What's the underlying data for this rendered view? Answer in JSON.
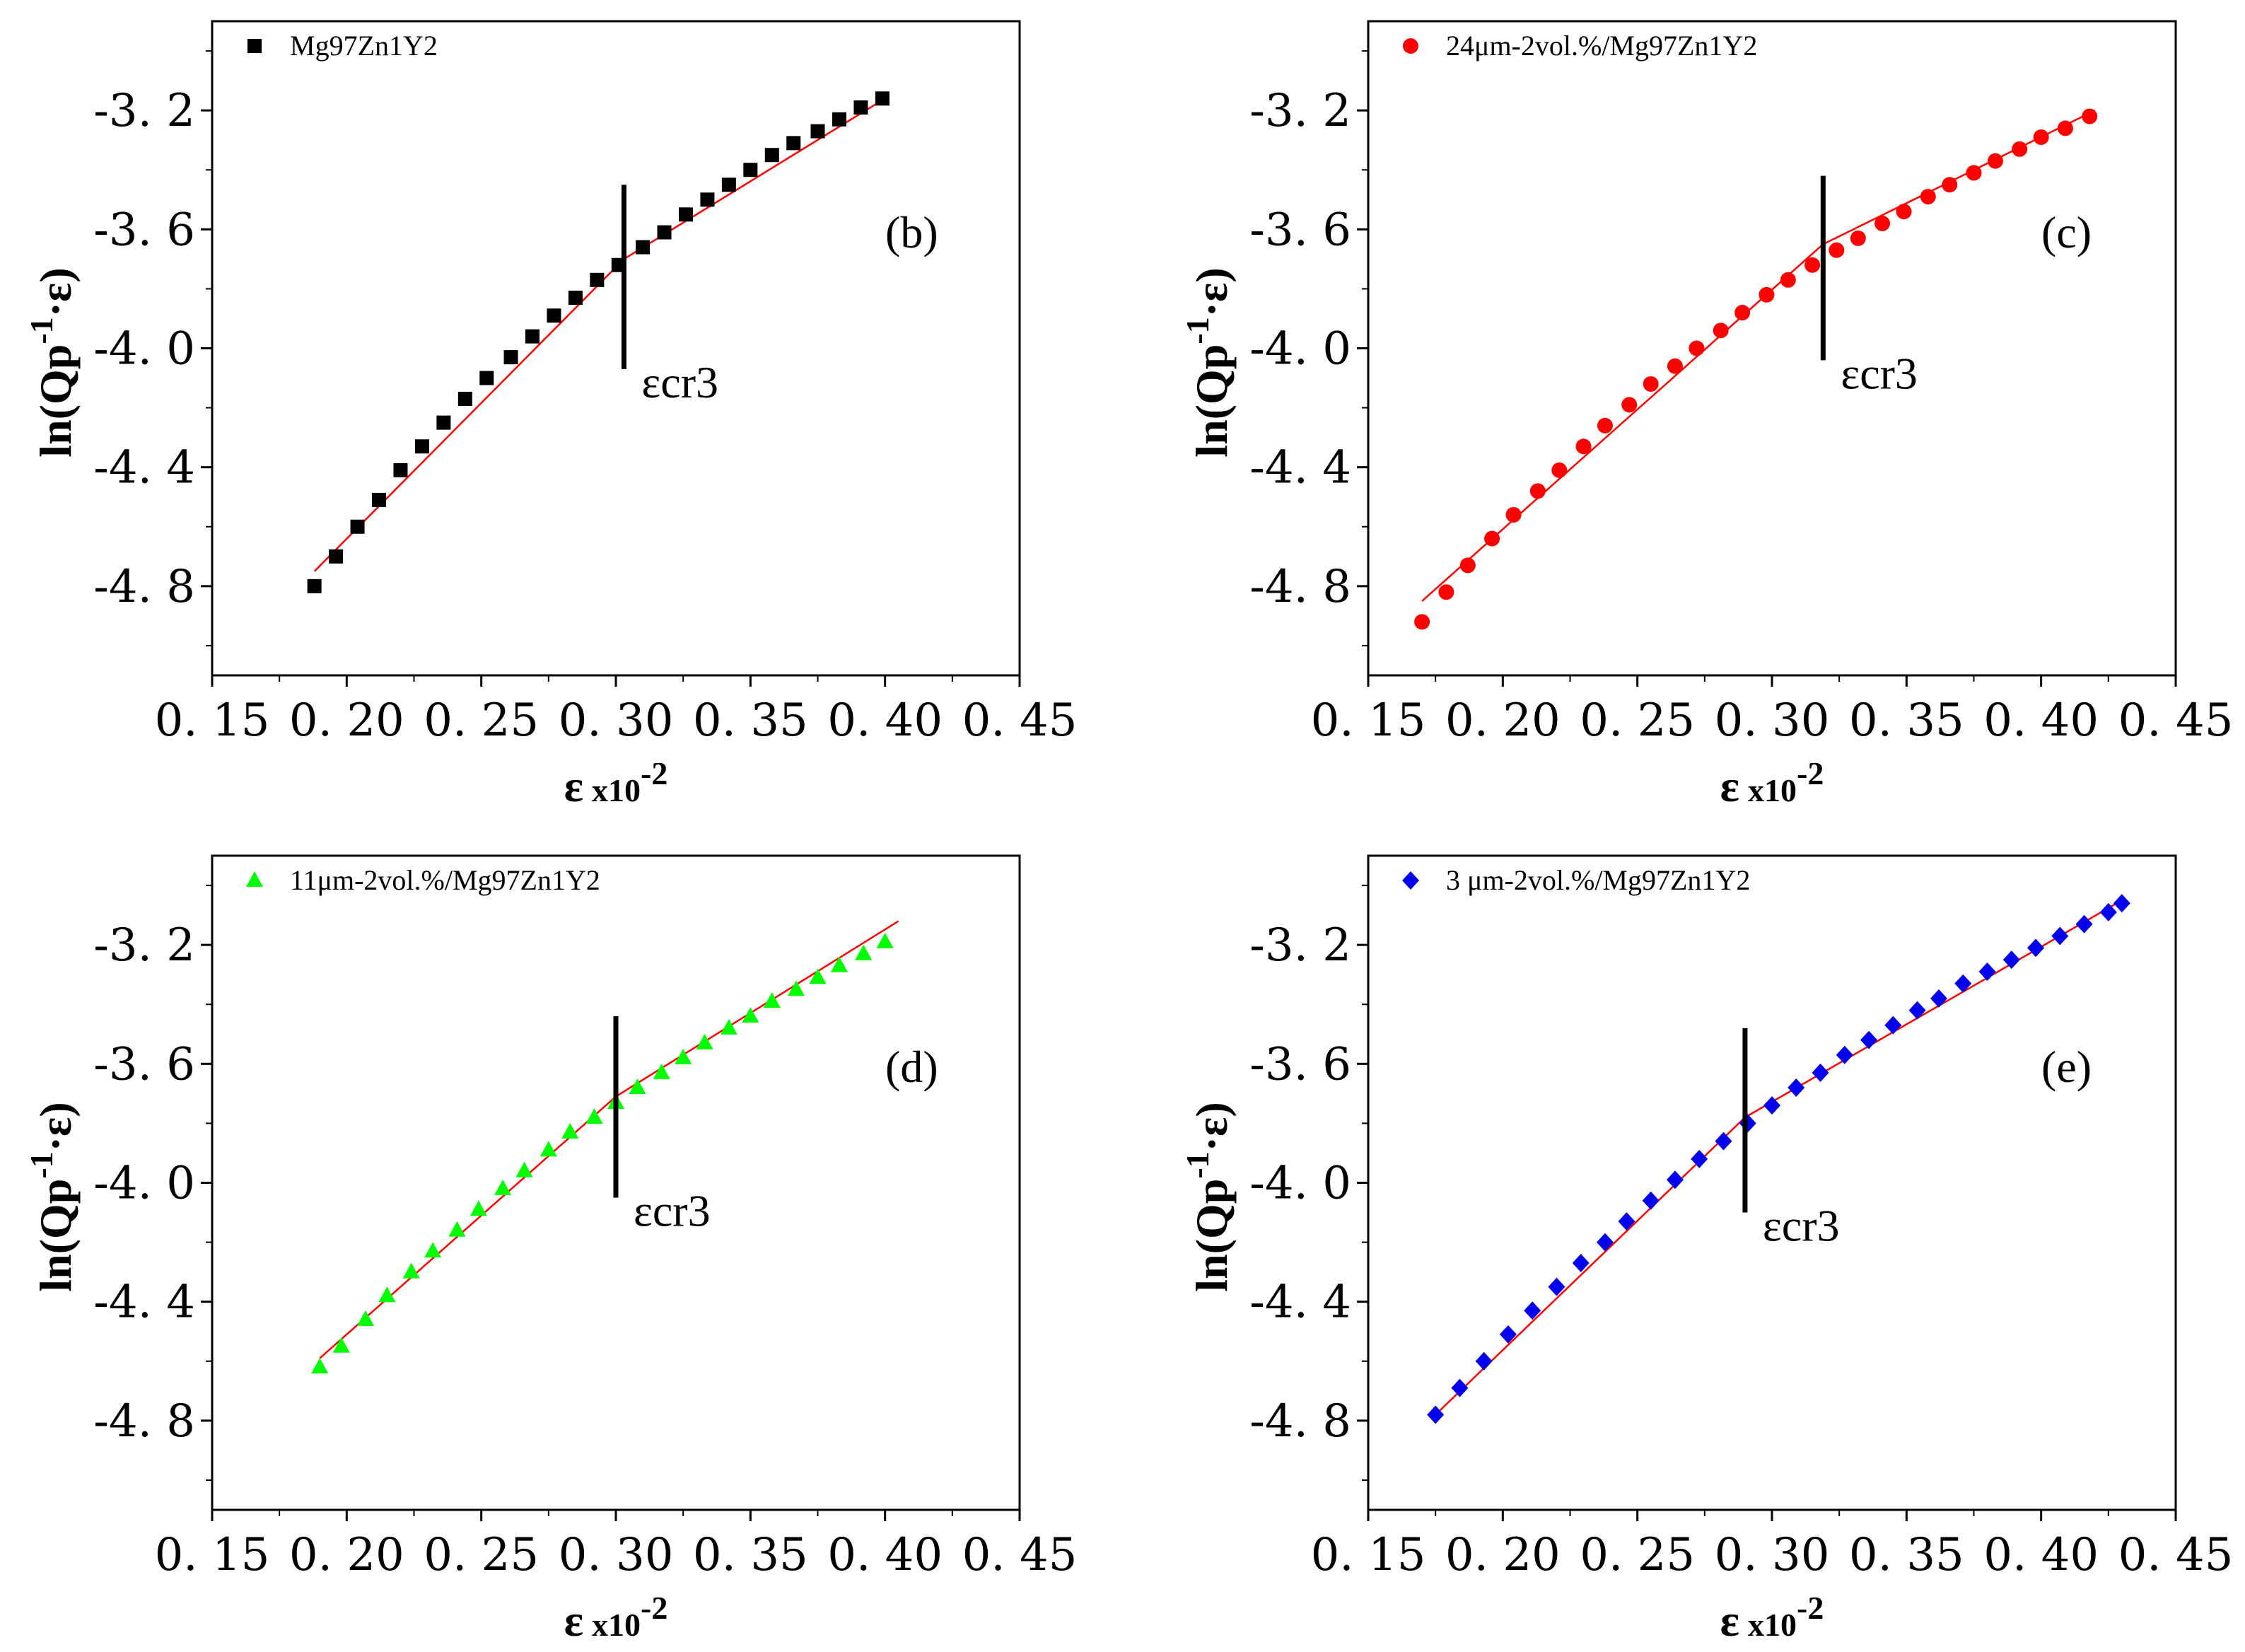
{
  "chart_data": [
    {
      "type": "scatter",
      "panel_label": "(b)",
      "legend": "Mg97Zn1Y2",
      "marker": "square",
      "color": "#000000",
      "fit_color": "#ff0000",
      "xlabel": "ε",
      "xlabel_suffix": "x10",
      "xlabel_exp": "-2",
      "ylabel": "ln(Qp",
      "ylabel_sup": "-1",
      "ylabel_tail": "·ε)",
      "xlim": [
        0.15,
        0.45
      ],
      "ylim": [
        -5.1,
        -2.9
      ],
      "x_ticks": [
        "0. 15",
        "0. 20",
        "0. 25",
        "0. 30",
        "0. 35",
        "0. 40",
        "0. 45"
      ],
      "y_ticks": [
        "-3. 2",
        "-3. 6",
        "-4. 0",
        "-4. 4",
        "-4. 8"
      ],
      "annotation": {
        "text": "εcr3",
        "x": 0.303,
        "y_range": [
          -4.07,
          -3.45
        ]
      },
      "fit": [
        {
          "x": [
            0.188,
            0.303
          ],
          "y": [
            -4.75,
            -3.7
          ]
        },
        {
          "x": [
            0.303,
            0.4
          ],
          "y": [
            -3.7,
            -3.16
          ]
        }
      ],
      "series": [
        {
          "name": "Mg97Zn1Y2",
          "x": [
            0.188,
            0.196,
            0.204,
            0.212,
            0.22,
            0.228,
            0.236,
            0.244,
            0.252,
            0.261,
            0.269,
            0.277,
            0.285,
            0.293,
            0.301,
            0.31,
            0.318,
            0.326,
            0.334,
            0.342,
            0.35,
            0.358,
            0.366,
            0.375,
            0.383,
            0.391,
            0.399
          ],
          "y": [
            -4.8,
            -4.7,
            -4.6,
            -4.51,
            -4.41,
            -4.33,
            -4.25,
            -4.17,
            -4.1,
            -4.03,
            -3.96,
            -3.89,
            -3.83,
            -3.77,
            -3.72,
            -3.66,
            -3.61,
            -3.55,
            -3.5,
            -3.45,
            -3.4,
            -3.35,
            -3.31,
            -3.27,
            -3.23,
            -3.19,
            -3.16
          ]
        }
      ]
    },
    {
      "type": "scatter",
      "panel_label": "(c)",
      "legend": "24μm-2vol.%/Mg97Zn1Y2",
      "marker": "circle",
      "color": "#ff0000",
      "fit_color": "#ff0000",
      "xlabel": "ε",
      "xlabel_suffix": "x10",
      "xlabel_exp": "-2",
      "ylabel": "ln(Qp",
      "ylabel_sup": "-1",
      "ylabel_tail": "·ε)",
      "xlim": [
        0.15,
        0.45
      ],
      "ylim": [
        -5.1,
        -2.9
      ],
      "x_ticks": [
        "0. 15",
        "0. 20",
        "0. 25",
        "0. 30",
        "0. 35",
        "0. 40",
        "0. 45"
      ],
      "y_ticks": [
        "-3. 2",
        "-3. 6",
        "-4. 0",
        "-4. 4",
        "-4. 8"
      ],
      "annotation": {
        "text": "εcr3",
        "x": 0.319,
        "y_range": [
          -4.04,
          -3.42
        ]
      },
      "fit": [
        {
          "x": [
            0.17,
            0.319
          ],
          "y": [
            -4.85,
            -3.65
          ]
        },
        {
          "x": [
            0.319,
            0.42
          ],
          "y": [
            -3.65,
            -3.2
          ]
        }
      ],
      "series": [
        {
          "name": "24μm-2vol.%/Mg97Zn1Y2",
          "x": [
            0.17,
            0.179,
            0.187,
            0.196,
            0.204,
            0.213,
            0.221,
            0.23,
            0.238,
            0.247,
            0.255,
            0.264,
            0.272,
            0.281,
            0.289,
            0.298,
            0.306,
            0.315,
            0.324,
            0.332,
            0.341,
            0.349,
            0.358,
            0.366,
            0.375,
            0.383,
            0.392,
            0.4,
            0.409,
            0.418
          ],
          "y": [
            -4.92,
            -4.82,
            -4.73,
            -4.64,
            -4.56,
            -4.48,
            -4.41,
            -4.33,
            -4.26,
            -4.19,
            -4.12,
            -4.06,
            -4.0,
            -3.94,
            -3.88,
            -3.82,
            -3.77,
            -3.72,
            -3.67,
            -3.63,
            -3.58,
            -3.54,
            -3.49,
            -3.45,
            -3.41,
            -3.37,
            -3.33,
            -3.29,
            -3.26,
            -3.22
          ]
        }
      ]
    },
    {
      "type": "scatter",
      "panel_label": "(d)",
      "legend": "11μm-2vol.%/Mg97Zn1Y2",
      "marker": "triangle",
      "color": "#00ff00",
      "fit_color": "#ff0000",
      "xlabel": "ε",
      "xlabel_suffix": "x10",
      "xlabel_exp": "-2",
      "ylabel": "ln(Qp",
      "ylabel_sup": "-1",
      "ylabel_tail": "·ε)",
      "xlim": [
        0.15,
        0.45
      ],
      "ylim": [
        -5.1,
        -2.9
      ],
      "x_ticks": [
        "0. 15",
        "0. 20",
        "0. 25",
        "0. 30",
        "0. 35",
        "0. 40",
        "0. 45"
      ],
      "y_ticks": [
        "-3. 2",
        "-3. 6",
        "-4. 0",
        "-4. 4",
        "-4. 8"
      ],
      "annotation": {
        "text": "εcr3",
        "x": 0.3,
        "y_range": [
          -4.05,
          -3.44
        ]
      },
      "fit": [
        {
          "x": [
            0.19,
            0.3
          ],
          "y": [
            -4.59,
            -3.71
          ]
        },
        {
          "x": [
            0.3,
            0.405
          ],
          "y": [
            -3.71,
            -3.12
          ]
        }
      ],
      "series": [
        {
          "name": "11μm-2vol.%/Mg97Zn1Y2",
          "x": [
            0.19,
            0.198,
            0.207,
            0.215,
            0.224,
            0.232,
            0.241,
            0.249,
            0.258,
            0.266,
            0.275,
            0.283,
            0.292,
            0.3,
            0.308,
            0.317,
            0.325,
            0.333,
            0.342,
            0.35,
            0.358,
            0.367,
            0.375,
            0.383,
            0.392,
            0.4
          ],
          "y": [
            -4.62,
            -4.55,
            -4.46,
            -4.38,
            -4.3,
            -4.23,
            -4.16,
            -4.09,
            -4.02,
            -3.96,
            -3.89,
            -3.83,
            -3.78,
            -3.73,
            -3.68,
            -3.63,
            -3.58,
            -3.53,
            -3.48,
            -3.44,
            -3.39,
            -3.35,
            -3.31,
            -3.27,
            -3.23,
            -3.19
          ]
        }
      ]
    },
    {
      "type": "scatter",
      "panel_label": "(e)",
      "legend": "3  μm-2vol.%/Mg97Zn1Y2",
      "marker": "diamond",
      "color": "#0000ee",
      "fit_color": "#ff0000",
      "xlabel": "ε",
      "xlabel_suffix": "x10",
      "xlabel_exp": "-2",
      "ylabel": "ln(Qp",
      "ylabel_sup": "-1",
      "ylabel_tail": "·ε)",
      "xlim": [
        0.15,
        0.45
      ],
      "ylim": [
        -5.1,
        -2.9
      ],
      "x_ticks": [
        "0. 15",
        "0. 20",
        "0. 25",
        "0. 30",
        "0. 35",
        "0. 40",
        "0. 45"
      ],
      "y_ticks": [
        "-3. 2",
        "-3. 6",
        "-4. 0",
        "-4. 4",
        "-4. 8"
      ],
      "annotation": {
        "text": "εcr3",
        "x": 0.29,
        "y_range": [
          -4.1,
          -3.48
        ]
      },
      "fit": [
        {
          "x": [
            0.175,
            0.29
          ],
          "y": [
            -4.78,
            -3.78
          ]
        },
        {
          "x": [
            0.29,
            0.43
          ],
          "y": [
            -3.78,
            -3.05
          ]
        }
      ],
      "series": [
        {
          "name": "3  μm-2vol.%/Mg97Zn1Y2",
          "x": [
            0.175,
            0.184,
            0.193,
            0.202,
            0.211,
            0.22,
            0.229,
            0.238,
            0.246,
            0.255,
            0.264,
            0.273,
            0.282,
            0.291,
            0.3,
            0.309,
            0.318,
            0.327,
            0.336,
            0.345,
            0.354,
            0.362,
            0.371,
            0.38,
            0.389,
            0.398,
            0.407,
            0.416,
            0.425,
            0.43
          ],
          "y": [
            -4.78,
            -4.69,
            -4.6,
            -4.51,
            -4.43,
            -4.35,
            -4.27,
            -4.2,
            -4.13,
            -4.06,
            -3.99,
            -3.92,
            -3.86,
            -3.8,
            -3.74,
            -3.68,
            -3.63,
            -3.57,
            -3.52,
            -3.47,
            -3.42,
            -3.38,
            -3.33,
            -3.29,
            -3.25,
            -3.21,
            -3.17,
            -3.13,
            -3.09,
            -3.06
          ]
        }
      ]
    }
  ]
}
